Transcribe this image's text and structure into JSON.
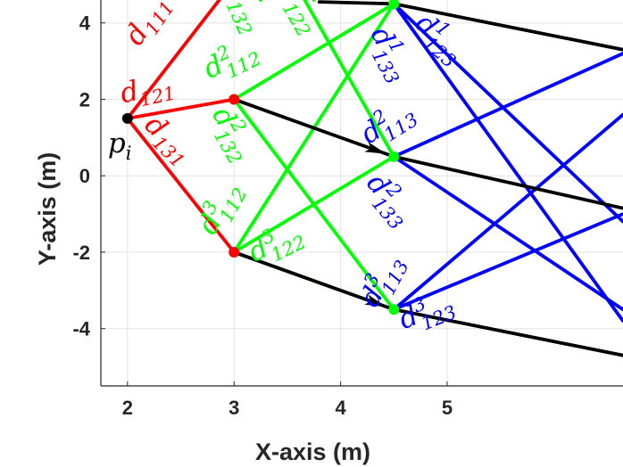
{
  "chart_data": {
    "type": "line",
    "title": "",
    "xlabel": "X-axis (m)",
    "ylabel": "Y-axis (m)",
    "xlim": [
      1.75,
      6.65
    ],
    "ylim": [
      -5.5,
      4.6
    ],
    "xticks": [
      2,
      3,
      4,
      5
    ],
    "yticks": [
      -4,
      -2,
      0,
      2,
      4
    ],
    "xtick_labels": [
      "2",
      "3",
      "4",
      "5"
    ],
    "ytick_labels": [
      "-4",
      "-2",
      "0",
      "2",
      "4"
    ],
    "grid": true,
    "colors": {
      "red": "#ff0000",
      "green": "#00ff00",
      "blue": "#0000ff",
      "black": "#000000"
    },
    "start_point": {
      "x": 2,
      "y": 1.5,
      "label": "p",
      "sub": "i"
    },
    "nodes": [
      {
        "x": 3,
        "y": 2,
        "color": "#ff0000"
      },
      {
        "x": 3,
        "y": -2,
        "color": "#ff0000"
      },
      {
        "x": 4.5,
        "y": 4.5,
        "color": "#00ff00"
      },
      {
        "x": 4.5,
        "y": 0.5,
        "color": "#00ff00"
      },
      {
        "x": 4.5,
        "y": -3.5,
        "color": "#00ff00"
      }
    ],
    "segments": [
      {
        "color": "#ff0000",
        "x": [
          2,
          3.25
        ],
        "y": [
          1.5,
          6
        ]
      },
      {
        "color": "#ff0000",
        "x": [
          2,
          3
        ],
        "y": [
          1.5,
          2
        ]
      },
      {
        "color": "#ff0000",
        "x": [
          2,
          3
        ],
        "y": [
          1.5,
          -2
        ]
      },
      {
        "color": "#00ff00",
        "x": [
          3,
          4.5
        ],
        "y": [
          2,
          4.5
        ]
      },
      {
        "color": "#00ff00",
        "x": [
          3,
          4.5
        ],
        "y": [
          2,
          -3.5
        ]
      },
      {
        "color": "#00ff00",
        "x": [
          3,
          4.5
        ],
        "y": [
          -2,
          0.5
        ]
      },
      {
        "color": "#00ff00",
        "x": [
          3,
          4.5
        ],
        "y": [
          -2,
          -3.5
        ]
      },
      {
        "color": "#00ff00",
        "x": [
          3,
          4.5
        ],
        "y": [
          -2,
          4.5
        ]
      },
      {
        "color": "#00ff00",
        "x": [
          3,
          3.25
        ],
        "y": [
          5.7,
          4.6
        ]
      },
      {
        "color": "#00ff00",
        "x": [
          3.5,
          4.5
        ],
        "y": [
          5.4,
          0.5
        ]
      },
      {
        "color": "#00ff00",
        "x": [
          3.65,
          3.75
        ],
        "y": [
          5.3,
          4.6
        ]
      },
      {
        "color": "#0000ff",
        "x": [
          4.5,
          6.65
        ],
        "y": [
          4.5,
          -3.8
        ]
      },
      {
        "color": "#0000ff",
        "x": [
          4.5,
          6.65
        ],
        "y": [
          4.5,
          -1.2
        ]
      },
      {
        "color": "#0000ff",
        "x": [
          4.5,
          6.65
        ],
        "y": [
          0.5,
          3.2
        ]
      },
      {
        "color": "#0000ff",
        "x": [
          4.5,
          6.65
        ],
        "y": [
          0.5,
          -3.5
        ]
      },
      {
        "color": "#0000ff",
        "x": [
          4.5,
          6.65
        ],
        "y": [
          -3.5,
          1.6
        ]
      },
      {
        "color": "#0000ff",
        "x": [
          4.5,
          6.65
        ],
        "y": [
          -3.5,
          -1.0
        ]
      },
      {
        "color": "#000000",
        "x": [
          3,
          4.5
        ],
        "y": [
          2,
          0.5
        ],
        "arrow": true
      },
      {
        "color": "#000000",
        "x": [
          4.5,
          6.65
        ],
        "y": [
          0.5,
          -0.85
        ]
      },
      {
        "color": "#000000",
        "x": [
          3,
          4.5
        ],
        "y": [
          -2,
          -3.5
        ],
        "arrow": true
      },
      {
        "color": "#000000",
        "x": [
          4.5,
          6.65
        ],
        "y": [
          -3.5,
          -4.7
        ]
      },
      {
        "color": "#000000",
        "x": [
          3.8,
          4.5
        ],
        "y": [
          4.55,
          4.5
        ]
      },
      {
        "color": "#000000",
        "x": [
          4.5,
          6.65
        ],
        "y": [
          4.5,
          3.3
        ]
      }
    ],
    "annotations": [
      {
        "main": "d",
        "sub": "111",
        "sup": "",
        "x": 2.25,
        "y": 3.95,
        "angle": -56,
        "color": "#ff0000"
      },
      {
        "main": "d",
        "sub": "121",
        "sup": "",
        "x": 2.2,
        "y": 2.05,
        "angle": -12,
        "color": "#ff0000"
      },
      {
        "main": "d",
        "sub": "131",
        "sup": "",
        "x": 2.33,
        "y": 0.8,
        "angle": 44,
        "color": "#ff0000"
      },
      {
        "main": "d",
        "sub": "132",
        "sup": "",
        "x": 3.02,
        "y": 4.35,
        "angle": 66,
        "color": "#00ff00"
      },
      {
        "main": "d",
        "sub": "122",
        "sup": "",
        "x": 3.55,
        "y": 4.3,
        "angle": 60,
        "color": "#00ff00"
      },
      {
        "main": "d",
        "sub": "112",
        "sup": "2",
        "x": 3.0,
        "y": 2.85,
        "angle": -26,
        "color": "#00ff00"
      },
      {
        "main": "d",
        "sub": "132",
        "sup": "2",
        "x": 2.92,
        "y": 1.0,
        "angle": 60,
        "color": "#00ff00"
      },
      {
        "main": "d",
        "sub": "112",
        "sup": "3",
        "x": 2.93,
        "y": -0.95,
        "angle": -62,
        "color": "#00ff00"
      },
      {
        "main": "d",
        "sub": "122",
        "sup": "3",
        "x": 3.42,
        "y": -1.95,
        "angle": -26,
        "color": "#00ff00"
      },
      {
        "main": "d",
        "sub": "133",
        "sup": "1",
        "x": 4.4,
        "y": 3.1,
        "angle": 62,
        "color": "#0000ff"
      },
      {
        "main": "d",
        "sub": "123",
        "sup": "1",
        "x": 4.88,
        "y": 3.45,
        "angle": 42,
        "color": "#0000ff"
      },
      {
        "main": "d",
        "sub": "113",
        "sup": "2",
        "x": 4.48,
        "y": 1.2,
        "angle": -32,
        "color": "#0000ff"
      },
      {
        "main": "d",
        "sub": "133",
        "sup": "2",
        "x": 4.4,
        "y": -0.75,
        "angle": 50,
        "color": "#0000ff"
      },
      {
        "main": "d",
        "sub": "113",
        "sup": "3",
        "x": 4.45,
        "y": -2.85,
        "angle": -62,
        "color": "#0000ff"
      },
      {
        "main": "d",
        "sub": "123",
        "sup": "3",
        "x": 4.83,
        "y": -3.75,
        "angle": -22,
        "color": "#0000ff"
      }
    ]
  }
}
